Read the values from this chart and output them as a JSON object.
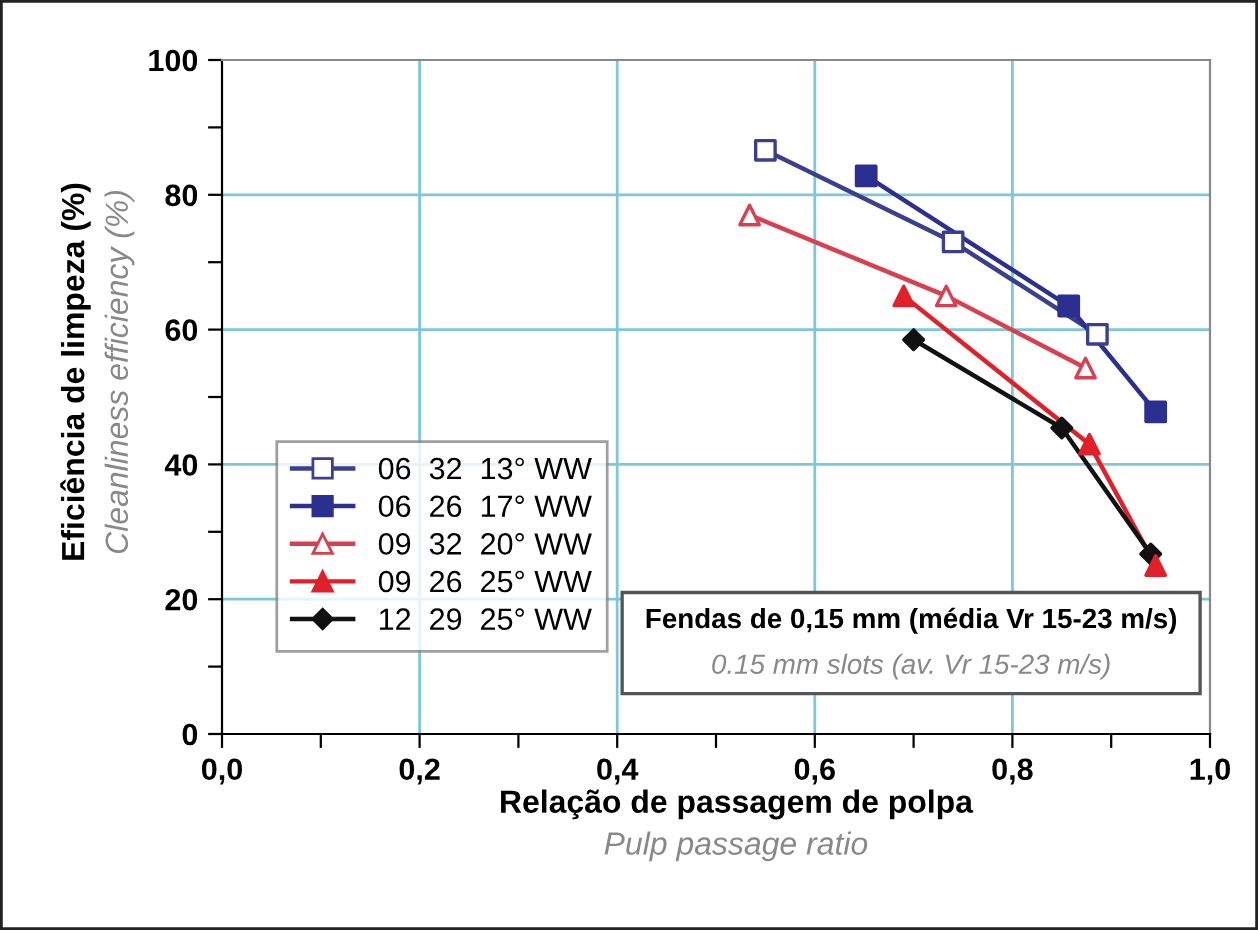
{
  "chart_data": {
    "type": "line",
    "xlabel": "Relação de passagem de polpa\nPulp passage ratio",
    "ylabel": "Eficiência de limpeza (%)\nCleanliness efficiency (%)",
    "annotations": [
      "Fendas de 0,15 mm (média Vr 15-23 m/s)\n0.15 mm slots (av. Vr 15-23 m/s)"
    ],
    "series": [
      {
        "name": "06  32  13° WW",
        "color": "#3a3f8f",
        "marker": "square",
        "colors": [
          "#ffffff",
          "#ffffff",
          "#ffffff"
        ],
        "x": [
          0.55,
          0.74,
          0.886
        ],
        "values": [
          86.6,
          73,
          59.3
        ]
      },
      {
        "name": "06  26  17° WW",
        "color": "#2b2f8f",
        "marker": "square",
        "x": [
          0.652,
          0.857,
          0.945
        ],
        "values": [
          82.8,
          63.5,
          47.8
        ]
      },
      {
        "name": "09  32  20° WW",
        "color": "#d9404f",
        "marker": "triangle",
        "colors": [
          "#ffffff",
          "#ffffff",
          "#ffffff"
        ],
        "x": [
          0.534,
          0.733,
          0.874
        ],
        "values": [
          77,
          65,
          54.3
        ]
      },
      {
        "name": "09  26  25° WW",
        "color": "#e0202a",
        "marker": "triangle",
        "x": [
          0.69,
          0.878,
          0.945
        ],
        "values": [
          65,
          43,
          25
        ]
      },
      {
        "name": "12  29  25° WW",
        "color": "#111111",
        "marker": "diamond",
        "x": [
          0.7,
          0.85,
          0.94
        ],
        "values": [
          58.5,
          45.4,
          26.7
        ]
      }
    ],
    "xlim": [
      0,
      1
    ],
    "ylim": [
      0,
      100
    ],
    "xticks": [
      {
        "value": 0,
        "label": "0,0"
      },
      {
        "value": 0.1,
        "label": null
      },
      {
        "value": 0.2,
        "label": "0,2"
      },
      {
        "value": 0.3,
        "label": null
      },
      {
        "value": 0.4,
        "label": "0,4"
      },
      {
        "value": 0.5,
        "label": null
      },
      {
        "value": 0.6,
        "label": "0,6"
      },
      {
        "value": 0.7,
        "label": null
      },
      {
        "value": 0.8,
        "label": "0,8"
      },
      {
        "value": 0.9,
        "label": null
      },
      {
        "value": 1.0,
        "label": "1,0"
      }
    ],
    "yticks": [
      0,
      {
        "value": 10,
        "label": null
      },
      20,
      {
        "value": 30,
        "label": null
      },
      40,
      {
        "value": 50,
        "label": null
      },
      60,
      {
        "value": 70,
        "label": null
      },
      80,
      {
        "value": 90,
        "label": null
      },
      100
    ],
    "grid": true,
    "legend": "bottom left",
    "line_style": "solid"
  }
}
